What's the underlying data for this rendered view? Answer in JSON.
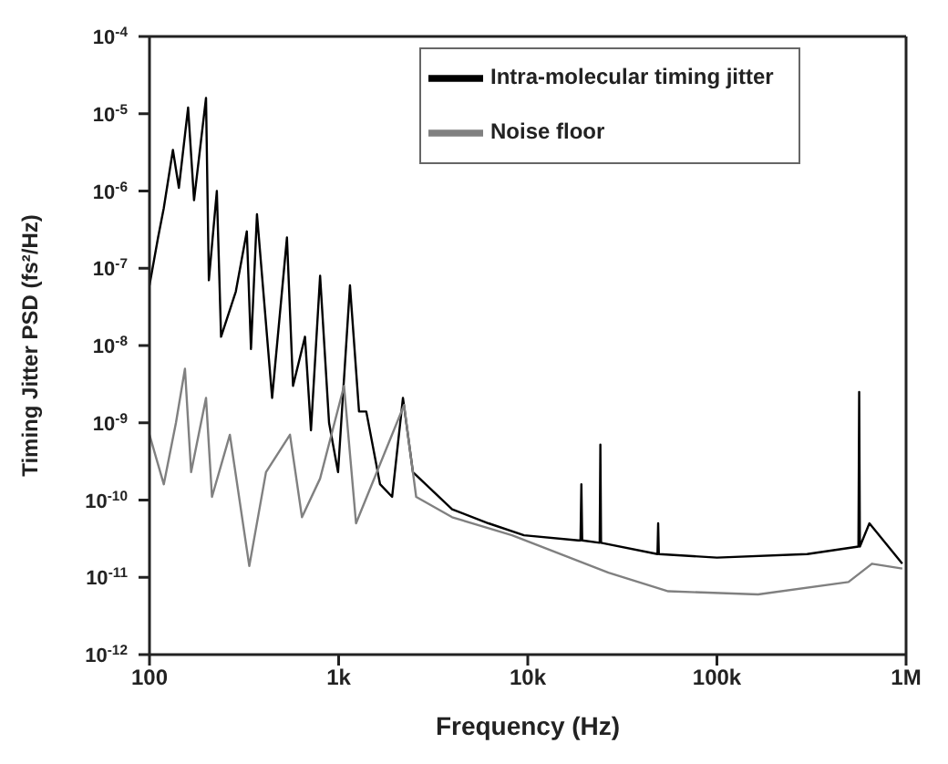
{
  "chart_data": {
    "type": "line",
    "xlabel": "Frequency (Hz)",
    "ylabel": "Timing Jitter PSD (fs²/Hz)",
    "log": "xy",
    "grid": false,
    "legend": "top right",
    "marker": "none",
    "line_style": "solid",
    "xlim": [
      100,
      1000000
    ],
    "xticks": [
      100,
      {
        "value": 1000,
        "label": "1k"
      },
      {
        "value": 10000,
        "label": "10k"
      },
      {
        "value": 100000,
        "label": "100k"
      },
      {
        "value": 1000000,
        "label": "1M"
      }
    ],
    "ylim": [
      1e-12,
      0.0001
    ],
    "yticks": [
      {
        "value": 1e-12,
        "label": "10$^{-12}$"
      },
      {
        "value": 1e-11,
        "label": "10$^{-11}$"
      },
      {
        "value": 1e-10,
        "label": "10$^{-10}$"
      },
      {
        "value": 1e-09,
        "label": "10$^{-9}$"
      },
      {
        "value": 1e-08,
        "label": "10$^{-8}$"
      },
      {
        "value": 1e-07,
        "label": "10$^{-7}$"
      },
      {
        "value": 1e-06,
        "label": "10$^{-6}$"
      },
      {
        "value": 1e-05,
        "label": "10$^{-5}$"
      },
      {
        "value": 0.0001,
        "label": "10$^{-4}$"
      }
    ],
    "series": [
      {
        "name": "Intra-molecular timing jitter",
        "color": "#000000",
        "x": [
          100,
          111,
          119,
          133,
          143,
          160,
          172,
          199,
          206,
          227,
          239,
          286,
          327,
          344,
          370,
          445,
          533,
          574,
          664,
          714,
          798,
          890,
          993,
          1148,
          1282,
          1400,
          1656,
          1918,
          2188,
          2470,
          3981,
          6200,
          9550,
          18500,
          19000,
          19200,
          19400,
          24000,
          24200,
          24400,
          48500,
          48900,
          49300,
          100000,
          300000,
          560000,
          565000,
          570000,
          640000,
          955000
        ],
        "values": [
          6e-08,
          2.5e-07,
          6e-07,
          3.4e-06,
          1.1e-06,
          1.2e-05,
          7.6e-07,
          1.6e-05,
          7e-08,
          1e-06,
          1.3e-08,
          5e-08,
          3e-07,
          9e-09,
          5e-07,
          2.1e-09,
          2.5e-07,
          3e-09,
          1.3e-08,
          8e-10,
          8e-08,
          1e-09,
          2.3e-10,
          6e-08,
          1.4e-09,
          1.4e-09,
          1.6e-10,
          1.1e-10,
          2.1e-09,
          2.3e-10,
          7.6e-11,
          5e-11,
          3.5e-11,
          3e-11,
          3e-11,
          1.6e-10,
          3e-11,
          2.8e-11,
          5.2e-10,
          2.8e-11,
          2e-11,
          5e-11,
          2e-11,
          1.8e-11,
          2e-11,
          2.5e-11,
          2.5e-09,
          2.5e-11,
          5e-11,
          1.5e-11
        ]
      },
      {
        "name": "Noise floor",
        "color": "#808080",
        "x": [
          100,
          119,
          138,
          154,
          166,
          199,
          214,
          266,
          337,
          413,
          553,
          640,
          798,
          1068,
          1236,
          2218,
          2570,
          3981,
          8260,
          26700,
          55300,
          165000,
          496000,
          660000,
          955000
        ],
        "values": [
          7e-10,
          1.6e-10,
          1e-09,
          5e-09,
          2.3e-10,
          2.1e-09,
          1.1e-10,
          7e-10,
          1.4e-11,
          2.3e-10,
          7e-10,
          6e-11,
          1.9e-10,
          3e-09,
          5e-11,
          1.7e-09,
          1.1e-10,
          6e-11,
          3.5e-11,
          1.15e-11,
          6.6e-12,
          6e-12,
          8.7e-12,
          1.5e-11,
          1.3e-11
        ]
      }
    ]
  }
}
